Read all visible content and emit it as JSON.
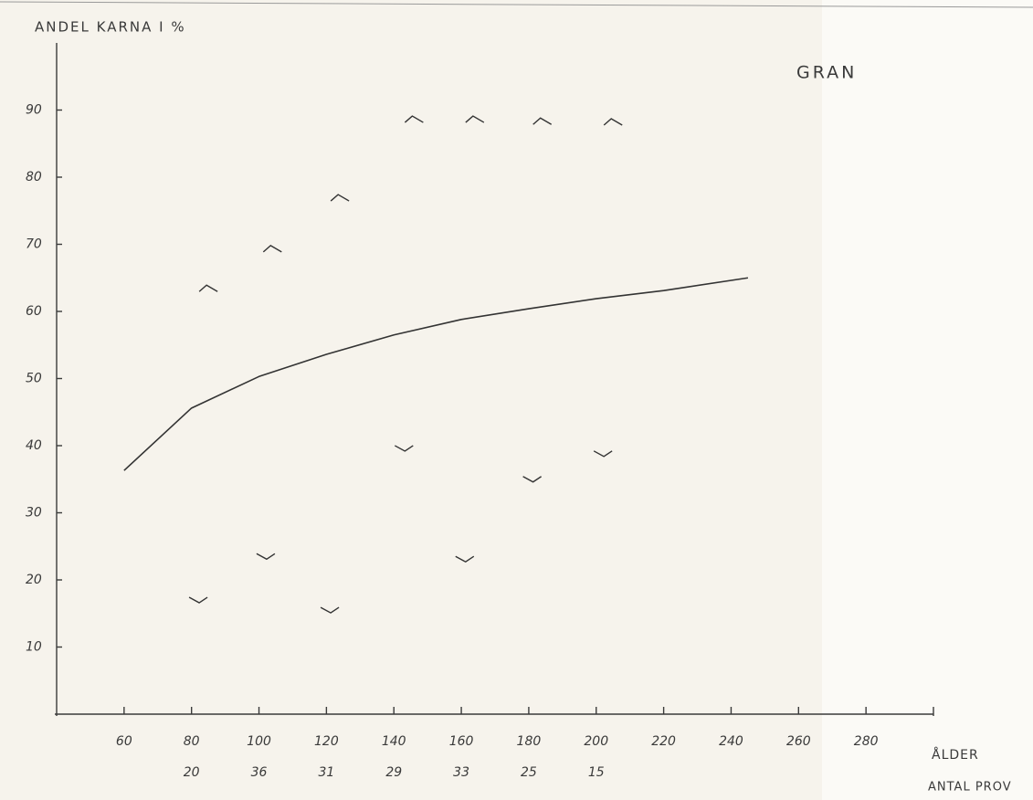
{
  "chart_data": {
    "type": "line",
    "title": "GRAN",
    "ylabel": "ANDEL KARNA I %",
    "xlabel": "ÅLDER",
    "xlim": [
      40,
      300
    ],
    "ylim": [
      0,
      100
    ],
    "xticks": [
      60,
      80,
      100,
      120,
      140,
      160,
      180,
      200,
      220,
      240,
      260,
      280
    ],
    "yticks": [
      10,
      20,
      30,
      40,
      50,
      60,
      70,
      80,
      90
    ],
    "color": "#333333",
    "series": [
      {
        "marker": "line",
        "color": "#333333",
        "x": [
          60,
          80,
          100,
          120,
          140,
          160,
          180,
          200,
          220,
          245
        ],
        "values": [
          36.3,
          45.6,
          50.3,
          53.6,
          56.5,
          58.8,
          60.4,
          61.9,
          63.1,
          65
        ]
      },
      {
        "marker": "up",
        "color": "#333333",
        "x": [
          85,
          104,
          124,
          146,
          164,
          184,
          205
        ],
        "values": [
          63.5,
          69.4,
          77,
          88.7,
          88.7,
          88.4,
          88.3
        ]
      },
      {
        "marker": "down",
        "color": "#333333",
        "x": [
          82,
          102,
          121,
          143,
          161,
          181,
          202
        ],
        "values": [
          17,
          23.5,
          15.5,
          39.6,
          23.1,
          35,
          38.8
        ]
      }
    ],
    "sample_counts": {
      "label": "ANTAL PROV",
      "x": [
        80,
        100,
        120,
        140,
        160,
        180,
        200
      ],
      "values": [
        20,
        36,
        31,
        29,
        33,
        25,
        15
      ]
    }
  }
}
